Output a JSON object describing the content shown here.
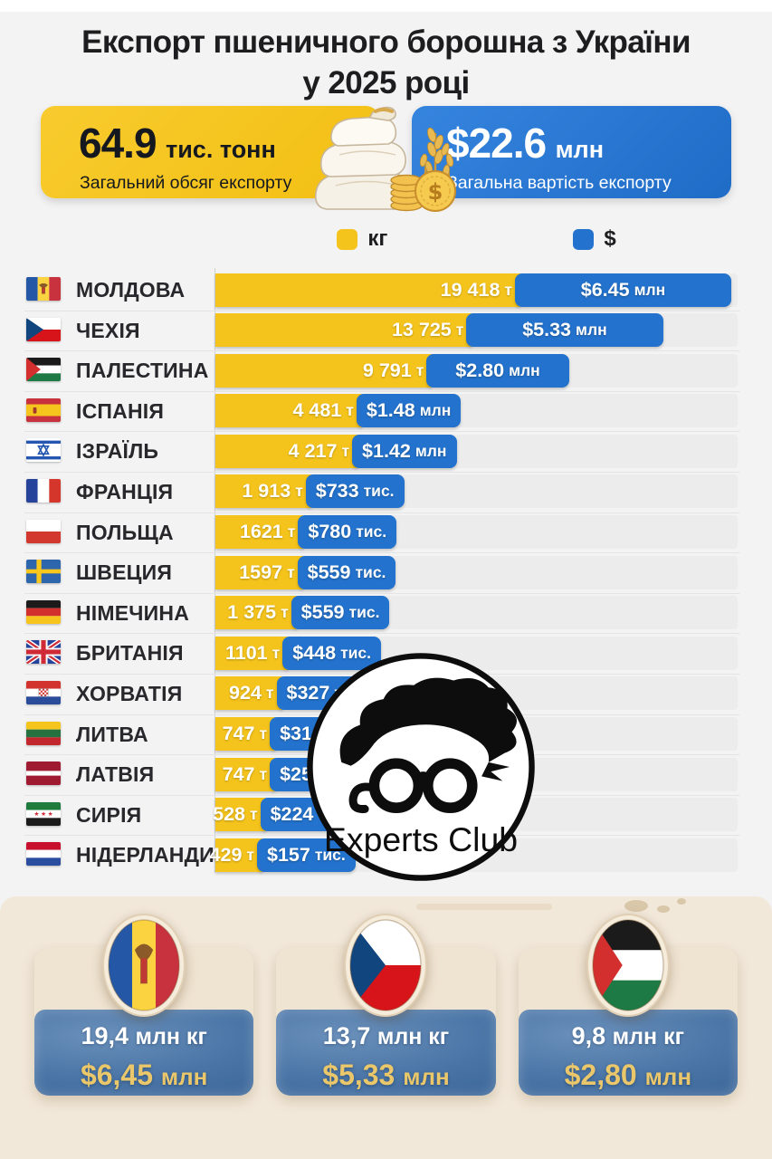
{
  "header": {
    "title_line1": "Експорт пшеничного борошна з України",
    "title_line2": "у 2025 році",
    "volume": {
      "number": "64.9",
      "unit": "тис. тонн",
      "caption": "Загальний обсяг експорту"
    },
    "value": {
      "number": "$22.6",
      "unit": "млн",
      "caption": "Загальна вартість експорту"
    }
  },
  "legend": {
    "kg_label": "кг",
    "usd_label": "$",
    "kg_color": "#f5c41c",
    "usd_color": "#2272ce"
  },
  "chart_data": {
    "type": "bar",
    "orientation": "horizontal",
    "scale": "sqrt",
    "max_tonnes": 19418,
    "max_usd_musd": 6.45,
    "series": [
      {
        "name": "кг",
        "color": "#f5c41c"
      },
      {
        "name": "$",
        "color": "#2272ce"
      }
    ],
    "rows": [
      {
        "country": "МОЛДОВА",
        "flag": "md",
        "tonnes": 19418,
        "tonnes_label": "19 418",
        "tonnes_unit": "т",
        "usd_musd": 6.45,
        "usd_label": "$6.45",
        "usd_unit": "млн"
      },
      {
        "country": "ЧЕХІЯ",
        "flag": "cz",
        "tonnes": 13725,
        "tonnes_label": "13 725",
        "tonnes_unit": "т",
        "usd_musd": 5.33,
        "usd_label": "$5.33",
        "usd_unit": "млн"
      },
      {
        "country": "ПАЛЕСТИНА",
        "flag": "ps",
        "tonnes": 9791,
        "tonnes_label": "9 791",
        "tonnes_unit": "т",
        "usd_musd": 2.8,
        "usd_label": "$2.80",
        "usd_unit": "млн"
      },
      {
        "country": "ІСПАНІЯ",
        "flag": "es",
        "tonnes": 4481,
        "tonnes_label": "4 481",
        "tonnes_unit": "т",
        "usd_musd": 1.48,
        "usd_label": "$1.48",
        "usd_unit": "млн"
      },
      {
        "country": "ІЗРАЇЛЬ",
        "flag": "il",
        "tonnes": 4217,
        "tonnes_label": "4 217",
        "tonnes_unit": "т",
        "usd_musd": 1.42,
        "usd_label": "$1.42",
        "usd_unit": "млн"
      },
      {
        "country": "ФРАНЦІЯ",
        "flag": "fr",
        "tonnes": 1913,
        "tonnes_label": "1 913",
        "tonnes_unit": "т",
        "usd_musd": 0.733,
        "usd_label": "$733",
        "usd_unit": "тис."
      },
      {
        "country": "ПОЛЬЩА",
        "flag": "pl",
        "tonnes": 1621,
        "tonnes_label": "1621",
        "tonnes_unit": "т",
        "usd_musd": 0.78,
        "usd_label": "$780",
        "usd_unit": "тис."
      },
      {
        "country": "ШВЕЦИЯ",
        "flag": "se",
        "tonnes": 1597,
        "tonnes_label": "1597",
        "tonnes_unit": "т",
        "usd_musd": 0.559,
        "usd_label": "$559",
        "usd_unit": "тис."
      },
      {
        "country": "НІМЕЧИНА",
        "flag": "de",
        "tonnes": 1375,
        "tonnes_label": "1 375",
        "tonnes_unit": "т",
        "usd_musd": 0.559,
        "usd_label": "$559",
        "usd_unit": "тис."
      },
      {
        "country": "БРИТАНІЯ",
        "flag": "gb",
        "tonnes": 1101,
        "tonnes_label": "1101",
        "tonnes_unit": "т",
        "usd_musd": 0.448,
        "usd_label": "$448",
        "usd_unit": "тис."
      },
      {
        "country": "ХОРВАТІЯ",
        "flag": "hr",
        "tonnes": 924,
        "tonnes_label": "924",
        "tonnes_unit": "т",
        "usd_musd": 0.327,
        "usd_label": "$327",
        "usd_unit": "тис."
      },
      {
        "country": "ЛИТВА",
        "flag": "lt",
        "tonnes": 747,
        "tonnes_label": "747",
        "tonnes_unit": "т",
        "usd_musd": 0.316,
        "usd_label": "$316",
        "usd_unit": "тис."
      },
      {
        "country": "ЛАТВІЯ",
        "flag": "lv",
        "tonnes": 747,
        "tonnes_label": "747",
        "tonnes_unit": "т",
        "usd_musd": 0.254,
        "usd_label": "$254",
        "usd_unit": "тис."
      },
      {
        "country": "СИРІЯ",
        "flag": "sy",
        "tonnes": 528,
        "tonnes_label": "528",
        "tonnes_unit": "т",
        "usd_musd": 0.224,
        "usd_label": "$224",
        "usd_unit": "тис."
      },
      {
        "country": "НІДЕРЛАНДИ",
        "flag": "nl",
        "tonnes": 429,
        "tonnes_label": "429",
        "tonnes_unit": "т",
        "usd_musd": 0.157,
        "usd_label": "$157",
        "usd_unit": "тис."
      }
    ]
  },
  "logo": {
    "text": "Experts Club"
  },
  "footer": {
    "cards": [
      {
        "flag": "md",
        "kg_number": "19,4",
        "kg_unit": "млн кг",
        "usd_number": "$6,45",
        "usd_unit": "млн"
      },
      {
        "flag": "cz",
        "kg_number": "13,7",
        "kg_unit": "млн кг",
        "usd_number": "$5,33",
        "usd_unit": "млн"
      },
      {
        "flag": "ps",
        "kg_number": "9,8",
        "kg_unit": "млн кг",
        "usd_number": "$2,80",
        "usd_unit": "млн"
      }
    ]
  }
}
